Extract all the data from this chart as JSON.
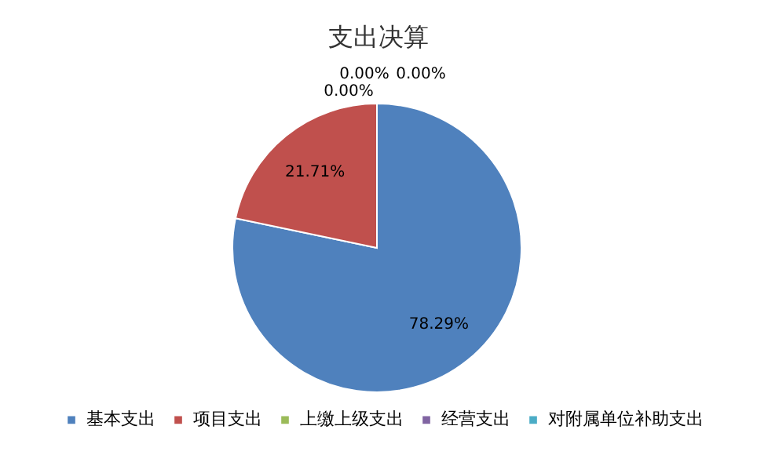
{
  "chart_data": {
    "type": "pie",
    "title": "支出决算",
    "categories": [
      "基本支出",
      "项目支出",
      "上缴上级支出",
      "经营支出",
      "对附属单位补助支出"
    ],
    "values": [
      78.29,
      21.71,
      0,
      0,
      0
    ],
    "colors": [
      "#4f81bd",
      "#c0504d",
      "#9bbb59",
      "#8064a2",
      "#4bacc6"
    ],
    "value_labels": [
      "78.29%",
      "21.71%",
      "0.00%",
      "0.00%",
      "0.00%"
    ],
    "legend": "bottom"
  }
}
